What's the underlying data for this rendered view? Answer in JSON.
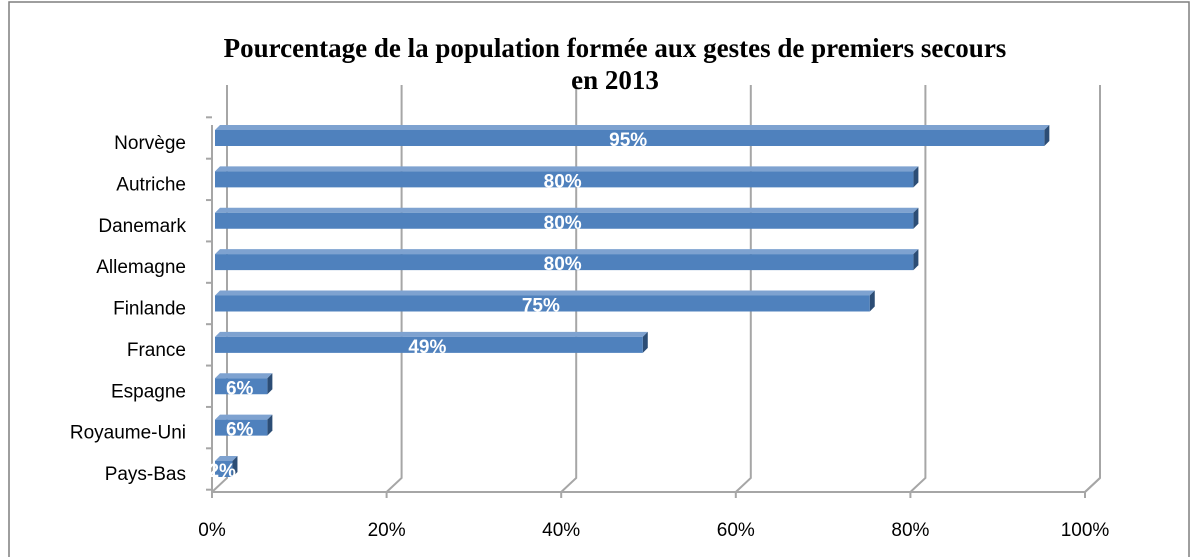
{
  "chart_data": {
    "type": "bar3d",
    "title": "Pourcentage de la population formée aux gestes de premiers secours\nen 2013",
    "categories": [
      "Norvège",
      "Autriche",
      "Danemark",
      "Allemagne",
      "Finlande",
      "France",
      "Espagne",
      "Royaume-Uni",
      "Pays-Bas"
    ],
    "values": [
      95,
      80,
      80,
      80,
      75,
      49,
      6,
      6,
      2
    ],
    "value_labels": [
      "95%",
      "80%",
      "80%",
      "80%",
      "75%",
      "49%",
      "6%",
      "6%",
      "2%"
    ],
    "color": "#4f81bd",
    "xlim": [
      0,
      100
    ],
    "xticks": [
      {
        "value": 0,
        "label": "0%"
      },
      {
        "value": 20,
        "label": "20%"
      },
      {
        "value": 40,
        "label": "40%"
      },
      {
        "value": 60,
        "label": "60%"
      },
      {
        "value": 80,
        "label": "80%"
      },
      {
        "value": 100,
        "label": "100%"
      }
    ],
    "grid": true
  }
}
